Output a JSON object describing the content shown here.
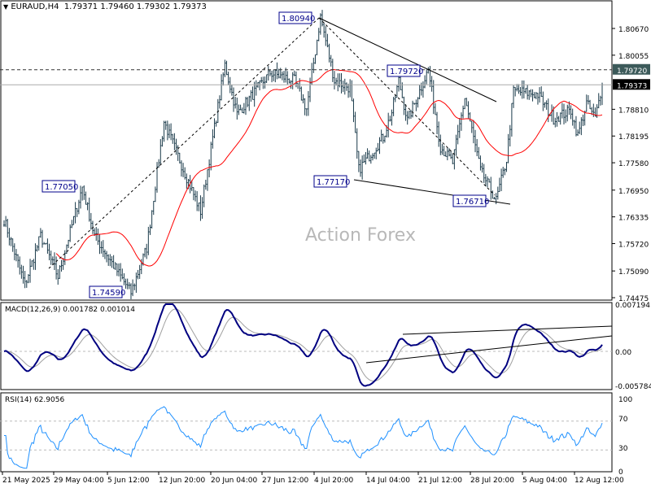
{
  "header": {
    "symbol": "EURAUD,H4",
    "open": "1.79371",
    "high": "1.79460",
    "low": "1.79302",
    "close": "1.79373"
  },
  "watermark": "Action Forex",
  "chart_data": [
    {
      "type": "ohlc",
      "title": "EURAUD,H4",
      "ylim": [
        1.74475,
        1.8067
      ],
      "yticks": [
        "1.80670",
        "1.80055",
        "1.79440",
        "1.78810",
        "1.78195",
        "1.77580",
        "1.76950",
        "1.76335",
        "1.75720",
        "1.75090",
        "1.74475"
      ],
      "yticks_values": [
        1.8067,
        1.80055,
        1.7944,
        1.7881,
        1.78195,
        1.7758,
        1.7695,
        1.76335,
        1.7572,
        1.7509,
        1.74475
      ],
      "xticks": [
        "21 May 2025",
        "29 May 04:00",
        "5 Jun 12:00",
        "12 Jun 20:00",
        "20 Jun 04:00",
        "27 Jun 12:00",
        "4 Jul 20:00",
        "14 Jul 04:00",
        "21 Jul 12:00",
        "28 Jul 20:00",
        "5 Aug 04:00",
        "12 Aug 12:00"
      ],
      "bar_count": 345,
      "path_bar_price": [
        [
          0,
          1.7627
        ],
        [
          12,
          1.7477
        ],
        [
          21,
          1.759
        ],
        [
          31,
          1.7496
        ],
        [
          45,
          1.7702
        ],
        [
          52,
          1.759
        ],
        [
          73,
          1.7459
        ],
        [
          82,
          1.7562
        ],
        [
          92,
          1.7852
        ],
        [
          113,
          1.7646
        ],
        [
          127,
          1.7983
        ],
        [
          134,
          1.787
        ],
        [
          153,
          1.7965
        ],
        [
          167,
          1.7947
        ],
        [
          174,
          1.7882
        ],
        [
          182,
          1.8094
        ],
        [
          190,
          1.7947
        ],
        [
          199,
          1.793
        ],
        [
          204,
          1.7742
        ],
        [
          218,
          1.7817
        ],
        [
          223,
          1.7874
        ],
        [
          227,
          1.7947
        ],
        [
          232,
          1.7855
        ],
        [
          244,
          1.7972
        ],
        [
          251,
          1.7795
        ],
        [
          258,
          1.7758
        ],
        [
          265,
          1.7908
        ],
        [
          274,
          1.774
        ],
        [
          283,
          1.7671
        ],
        [
          289,
          1.7765
        ],
        [
          293,
          1.7924
        ],
        [
          307,
          1.7915
        ],
        [
          316,
          1.786
        ],
        [
          326,
          1.7878
        ],
        [
          330,
          1.782
        ],
        [
          335,
          1.7895
        ],
        [
          340,
          1.786
        ],
        [
          344,
          1.79373
        ]
      ],
      "ma_line": {
        "color": "#ff0000",
        "period": 30
      },
      "current_price": {
        "label": "1.79373",
        "value": 1.79373
      },
      "resistance_level": {
        "label": "1.79720",
        "value": 1.7972
      },
      "swing_labels": [
        {
          "label": "1.80940",
          "value": 1.8094
        },
        {
          "label": "1.79720",
          "value": 1.7972
        },
        {
          "label": "1.77050",
          "value": 1.7705
        },
        {
          "label": "1.74590",
          "value": 1.7459
        },
        {
          "label": "1.77170",
          "value": 1.7717
        },
        {
          "label": "1.76710",
          "value": 1.7671
        }
      ]
    },
    {
      "type": "line",
      "title": "MACD(12,26,9) 0.001782 0.001014",
      "ylim": [
        -0.005784,
        0.007194
      ],
      "yticks": [
        "0.007194",
        "0.00",
        "-0.005784"
      ],
      "series": [
        {
          "name": "MACD",
          "color": "#000080"
        },
        {
          "name": "Signal",
          "color": "#a0a0a0"
        }
      ]
    },
    {
      "type": "line",
      "title": "RSI(14) 62.9056",
      "ylim": [
        0,
        100
      ],
      "yticks": [
        "100",
        "70",
        "30",
        "0"
      ],
      "levels": [
        70,
        30
      ],
      "series": [
        {
          "name": "RSI",
          "color": "#1e90ff"
        }
      ]
    }
  ]
}
